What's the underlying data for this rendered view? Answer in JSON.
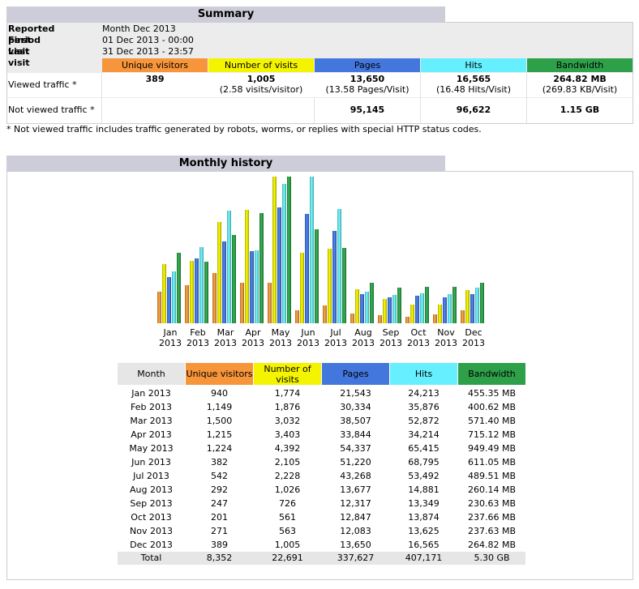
{
  "summary": {
    "title": "Summary",
    "reported_period_label": "Reported period",
    "reported_period_value": "Month Dec 2013",
    "first_visit_label": "First visit",
    "first_visit_value": "01 Dec 2013 - 00:00",
    "last_visit_label": "Last visit",
    "last_visit_value": "31 Dec 2013 - 23:57",
    "headers": {
      "unique": "Unique visitors",
      "visits": "Number of visits",
      "pages": "Pages",
      "hits": "Hits",
      "bandwidth": "Bandwidth"
    },
    "viewed": {
      "label": "Viewed traffic *",
      "unique": "389",
      "visits": "1,005",
      "visits_sub": "(2.58 visits/visitor)",
      "pages": "13,650",
      "pages_sub": "(13.58 Pages/Visit)",
      "hits": "16,565",
      "hits_sub": "(16.48 Hits/Visit)",
      "bandwidth": "264.82 MB",
      "bandwidth_sub": "(269.83 KB/Visit)"
    },
    "not_viewed": {
      "label": "Not viewed traffic *",
      "pages": "95,145",
      "hits": "96,622",
      "bandwidth": "1.15 GB"
    },
    "footnote": "* Not viewed traffic includes traffic generated by robots, worms, or replies with special HTTP status codes."
  },
  "monthly": {
    "title": "Monthly history",
    "headers": {
      "month": "Month",
      "unique": "Unique visitors",
      "visits": "Number of visits",
      "pages": "Pages",
      "hits": "Hits",
      "bandwidth": "Bandwidth"
    },
    "rows": [
      {
        "month": "Jan 2013",
        "unique": "940",
        "visits": "1,774",
        "pages": "21,543",
        "hits": "24,213",
        "bandwidth": "455.35 MB"
      },
      {
        "month": "Feb 2013",
        "unique": "1,149",
        "visits": "1,876",
        "pages": "30,334",
        "hits": "35,876",
        "bandwidth": "400.62 MB"
      },
      {
        "month": "Mar 2013",
        "unique": "1,500",
        "visits": "3,032",
        "pages": "38,507",
        "hits": "52,872",
        "bandwidth": "571.40 MB"
      },
      {
        "month": "Apr 2013",
        "unique": "1,215",
        "visits": "3,403",
        "pages": "33,844",
        "hits": "34,214",
        "bandwidth": "715.12 MB"
      },
      {
        "month": "May 2013",
        "unique": "1,224",
        "visits": "4,392",
        "pages": "54,337",
        "hits": "65,415",
        "bandwidth": "949.49 MB"
      },
      {
        "month": "Jun 2013",
        "unique": "382",
        "visits": "2,105",
        "pages": "51,220",
        "hits": "68,795",
        "bandwidth": "611.05 MB"
      },
      {
        "month": "Jul 2013",
        "unique": "542",
        "visits": "2,228",
        "pages": "43,268",
        "hits": "53,492",
        "bandwidth": "489.51 MB"
      },
      {
        "month": "Aug 2013",
        "unique": "292",
        "visits": "1,026",
        "pages": "13,677",
        "hits": "14,881",
        "bandwidth": "260.14 MB"
      },
      {
        "month": "Sep 2013",
        "unique": "247",
        "visits": "726",
        "pages": "12,317",
        "hits": "13,349",
        "bandwidth": "230.63 MB"
      },
      {
        "month": "Oct 2013",
        "unique": "201",
        "visits": "561",
        "pages": "12,847",
        "hits": "13,874",
        "bandwidth": "237.66 MB"
      },
      {
        "month": "Nov 2013",
        "unique": "271",
        "visits": "563",
        "pages": "12,083",
        "hits": "13,625",
        "bandwidth": "237.63 MB"
      },
      {
        "month": "Dec 2013",
        "unique": "389",
        "visits": "1,005",
        "pages": "13,650",
        "hits": "16,565",
        "bandwidth": "264.82 MB"
      }
    ],
    "total": {
      "month": "Total",
      "unique": "8,352",
      "visits": "22,691",
      "pages": "337,627",
      "hits": "407,171",
      "bandwidth": "5.30 GB"
    }
  },
  "colors": {
    "unique": "#f7953a",
    "visits": "#f4f400",
    "pages": "#4477dd",
    "hits": "#66f0ff",
    "bandwidth": "#2ea04a",
    "header_bg": "#cccdd8"
  },
  "chart_data": {
    "type": "bar",
    "categories": [
      "Jan 2013",
      "Feb 2013",
      "Mar 2013",
      "Apr 2013",
      "May 2013",
      "Jun 2013",
      "Jul 2013",
      "Aug 2013",
      "Sep 2013",
      "Oct 2013",
      "Nov 2013",
      "Dec 2013"
    ],
    "category_labels": [
      [
        "Jan",
        "2013"
      ],
      [
        "Feb",
        "2013"
      ],
      [
        "Mar",
        "2013"
      ],
      [
        "Apr",
        "2013"
      ],
      [
        "May",
        "2013"
      ],
      [
        "Jun",
        "2013"
      ],
      [
        "Jul",
        "2013"
      ],
      [
        "Aug",
        "2013"
      ],
      [
        "Sep",
        "2013"
      ],
      [
        "Oct",
        "2013"
      ],
      [
        "Nov",
        "2013"
      ],
      [
        "Dec",
        "2013"
      ]
    ],
    "series": [
      {
        "key": "unique",
        "color": "#f7953a",
        "values": [
          940,
          1149,
          1500,
          1215,
          1224,
          382,
          542,
          292,
          247,
          201,
          271,
          389
        ]
      },
      {
        "key": "visits",
        "color": "#f4f400",
        "values": [
          1774,
          1876,
          3032,
          3403,
          4392,
          2105,
          2228,
          1026,
          726,
          561,
          563,
          1005
        ]
      },
      {
        "key": "pages",
        "color": "#4477dd",
        "values": [
          21543,
          30334,
          38507,
          33844,
          54337,
          51220,
          43268,
          13677,
          12317,
          12847,
          12083,
          13650
        ]
      },
      {
        "key": "hits",
        "color": "#66f0ff",
        "values": [
          24213,
          35876,
          52872,
          34214,
          65415,
          68795,
          53492,
          14881,
          13349,
          13874,
          13625,
          16565
        ]
      },
      {
        "key": "bandwidth",
        "color": "#2ea04a",
        "values": [
          455.35,
          400.62,
          571.4,
          715.12,
          949.49,
          611.05,
          489.51,
          260.14,
          230.63,
          237.66,
          237.63,
          264.82
        ]
      }
    ],
    "scale_groups": [
      [
        "unique",
        "visits"
      ],
      [
        "pages",
        "hits"
      ],
      [
        "bandwidth"
      ]
    ],
    "legend": "none",
    "grid": false
  }
}
